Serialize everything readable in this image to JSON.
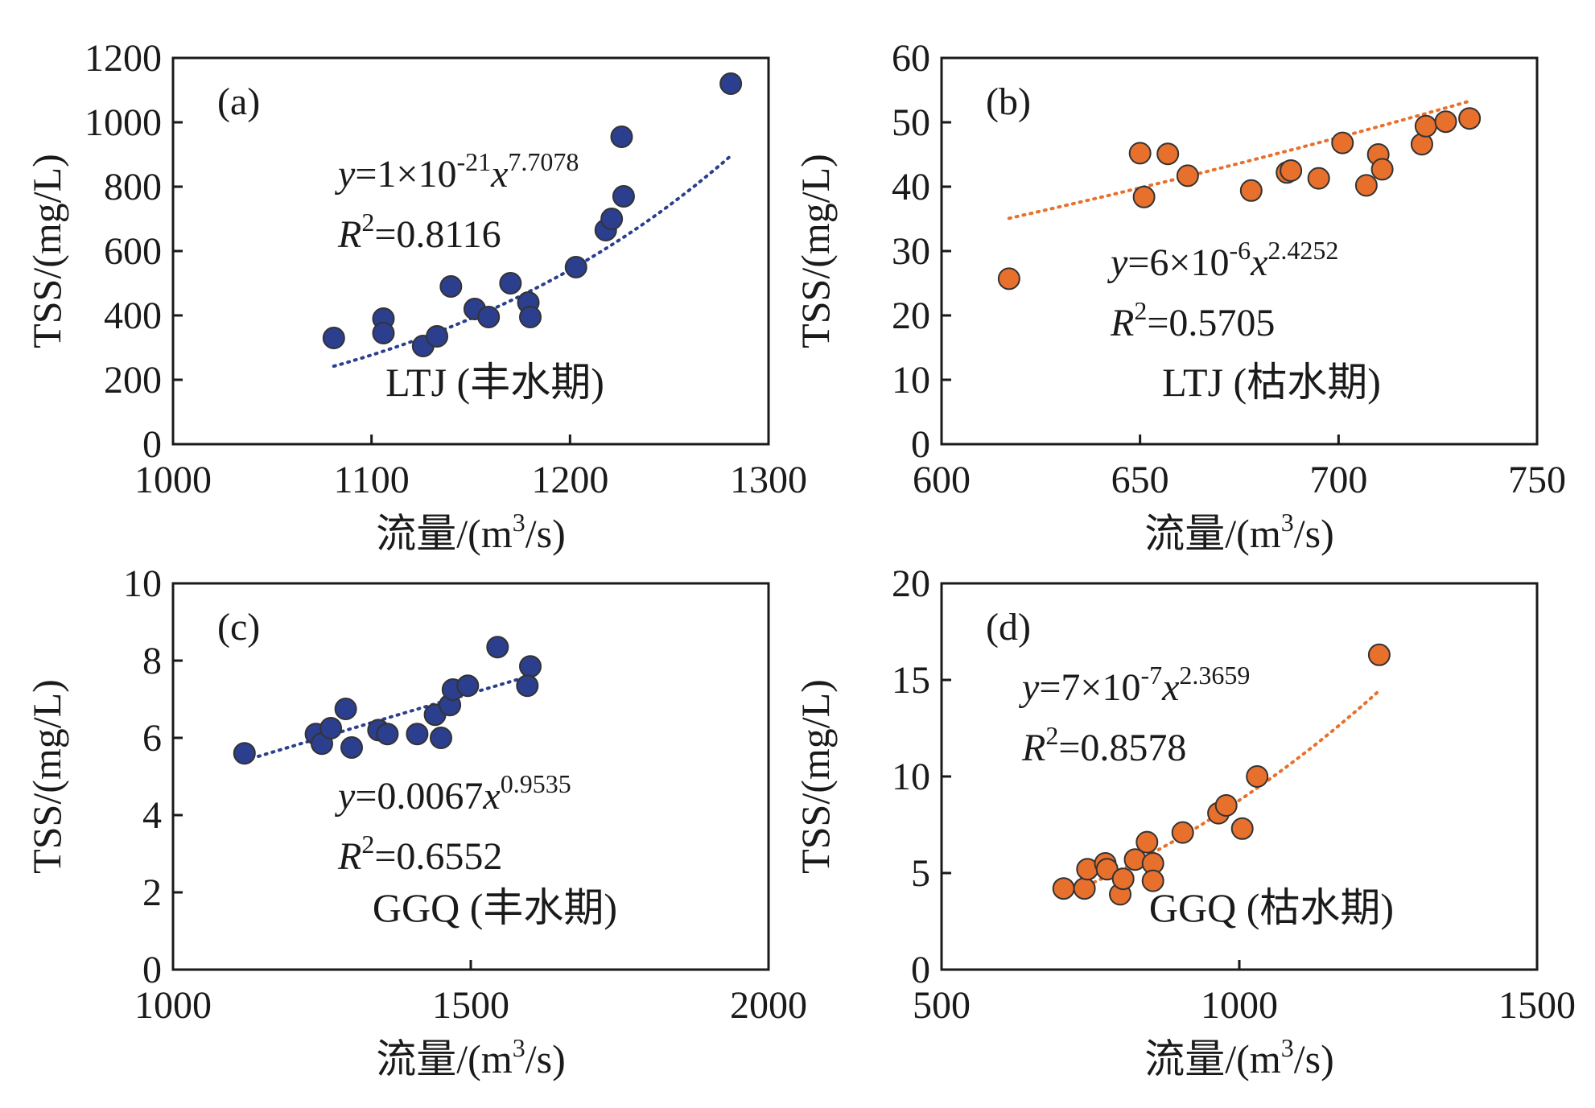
{
  "colors": {
    "blue": "#2b3f8e",
    "orange": "#e8702d",
    "marker_stroke": "#333333"
  },
  "chart_data": [
    {
      "id": "a",
      "type": "scatter",
      "panel_label": "(a)",
      "station_label": "LTJ (丰水期)",
      "xlabel_main": "流量/(m",
      "xlabel_sup": "3",
      "xlabel_end": "/s)",
      "ylabel": "TSS/(mg/L)",
      "xlim": [
        1000,
        1300
      ],
      "ylim": [
        0,
        1200
      ],
      "xticks": [
        1000,
        1100,
        1200,
        1300
      ],
      "yticks": [
        0,
        200,
        400,
        600,
        800,
        1000,
        1200
      ],
      "color": "#2b3f8e",
      "trend": {
        "type": "power",
        "a": 1e-21,
        "b": 7.7078,
        "x_from": 1081,
        "x_to": 1280
      },
      "equation": {
        "y": "y",
        "lhs": "=1×10",
        "exp1": "-21",
        "x": "x",
        "exp2": "7.7078",
        "r_main": "R",
        "r_sup": "2",
        "r_val": "=0.8116"
      },
      "points": [
        [
          1081,
          330
        ],
        [
          1106,
          390
        ],
        [
          1106,
          345
        ],
        [
          1126,
          305
        ],
        [
          1133,
          335
        ],
        [
          1140,
          490
        ],
        [
          1152,
          420
        ],
        [
          1159,
          395
        ],
        [
          1170,
          500
        ],
        [
          1179,
          440
        ],
        [
          1180,
          395
        ],
        [
          1203,
          550
        ],
        [
          1218,
          665
        ],
        [
          1221,
          700
        ],
        [
          1226,
          955
        ],
        [
          1227,
          770
        ],
        [
          1281,
          1120
        ]
      ]
    },
    {
      "id": "b",
      "type": "scatter",
      "panel_label": "(b)",
      "station_label": "LTJ (枯水期)",
      "xlabel_main": "流量/(m",
      "xlabel_sup": "3",
      "xlabel_end": "/s)",
      "ylabel": "TSS/(mg/L)",
      "xlim": [
        600,
        750
      ],
      "ylim": [
        0,
        60
      ],
      "xticks": [
        600,
        650,
        700,
        750
      ],
      "yticks": [
        0,
        10,
        20,
        30,
        40,
        50,
        60
      ],
      "color": "#e8702d",
      "trend": {
        "type": "power",
        "a": 6e-06,
        "b": 2.4252,
        "x_from": 617,
        "x_to": 733
      },
      "equation": {
        "y": "y",
        "lhs": "=6×10",
        "exp1": "-6",
        "x": "x",
        "exp2": "2.4252",
        "r_main": "R",
        "r_sup": "2",
        "r_val": "=0.5705"
      },
      "points": [
        [
          617,
          25.7
        ],
        [
          650,
          45.2
        ],
        [
          651,
          38.4
        ],
        [
          657,
          45.1
        ],
        [
          662,
          41.7
        ],
        [
          678,
          39.4
        ],
        [
          687,
          42.2
        ],
        [
          688,
          42.5
        ],
        [
          695,
          41.3
        ],
        [
          701,
          46.8
        ],
        [
          707,
          40.2
        ],
        [
          710,
          45.0
        ],
        [
          711,
          42.7
        ],
        [
          721,
          46.6
        ],
        [
          722,
          49.4
        ],
        [
          727,
          50.1
        ],
        [
          733,
          50.6
        ]
      ]
    },
    {
      "id": "c",
      "type": "scatter",
      "panel_label": "(c)",
      "station_label": "GGQ (丰水期)",
      "xlabel_main": "流量/(m",
      "xlabel_sup": "3",
      "xlabel_end": "/s)",
      "ylabel": "TSS/(mg/L)",
      "xlim": [
        1000,
        2000
      ],
      "ylim": [
        0,
        10
      ],
      "xticks": [
        1000,
        1500,
        2000
      ],
      "yticks": [
        0,
        2,
        4,
        6,
        8,
        10
      ],
      "color": "#2b3f8e",
      "trend": {
        "type": "power",
        "a": 0.0067,
        "b": 0.9535,
        "x_from": 1120,
        "x_to": 1600
      },
      "equation": {
        "y": "y",
        "lhs": "=0.0067",
        "exp1": "",
        "x": "x",
        "exp2": "0.9535",
        "r_main": "R",
        "r_sup": "2",
        "r_val": "=0.6552"
      },
      "points": [
        [
          1120,
          5.6
        ],
        [
          1240,
          6.1
        ],
        [
          1250,
          5.85
        ],
        [
          1265,
          6.25
        ],
        [
          1290,
          6.75
        ],
        [
          1300,
          5.75
        ],
        [
          1345,
          6.2
        ],
        [
          1360,
          6.1
        ],
        [
          1410,
          6.1
        ],
        [
          1440,
          6.6
        ],
        [
          1450,
          6.0
        ],
        [
          1465,
          6.85
        ],
        [
          1470,
          7.25
        ],
        [
          1495,
          7.35
        ],
        [
          1545,
          8.35
        ],
        [
          1600,
          7.85
        ],
        [
          1595,
          7.35
        ]
      ]
    },
    {
      "id": "d",
      "type": "scatter",
      "panel_label": "(d)",
      "station_label": "GGQ (枯水期)",
      "xlabel_main": "流量/(m",
      "xlabel_sup": "3",
      "xlabel_end": "/s)",
      "ylabel": "TSS/(mg/L)",
      "xlim": [
        500,
        1500
      ],
      "ylim": [
        0,
        20
      ],
      "xticks": [
        500,
        1000,
        1500
      ],
      "yticks": [
        0,
        5,
        10,
        15,
        20
      ],
      "color": "#e8702d",
      "trend": {
        "type": "power",
        "a": 7e-07,
        "b": 2.3659,
        "x_from": 700,
        "x_to": 1235
      },
      "equation": {
        "y": "y",
        "lhs": "=7×10",
        "exp1": "-7",
        "x": "x",
        "exp2": "2.3659",
        "r_main": "R",
        "r_sup": "2",
        "r_val": "=0.8578"
      },
      "points": [
        [
          705,
          4.2
        ],
        [
          740,
          4.2
        ],
        [
          745,
          5.2
        ],
        [
          775,
          5.5
        ],
        [
          778,
          5.2
        ],
        [
          800,
          3.9
        ],
        [
          805,
          4.7
        ],
        [
          825,
          5.7
        ],
        [
          845,
          6.6
        ],
        [
          855,
          5.5
        ],
        [
          855,
          4.6
        ],
        [
          905,
          7.1
        ],
        [
          965,
          8.1
        ],
        [
          978,
          8.5
        ],
        [
          1005,
          7.3
        ],
        [
          1030,
          10.0
        ],
        [
          1235,
          16.3
        ]
      ]
    }
  ]
}
